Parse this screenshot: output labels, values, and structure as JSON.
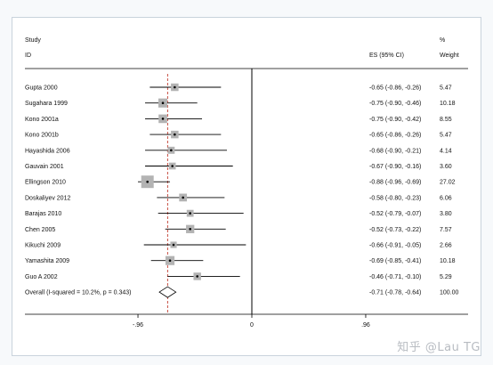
{
  "chart_data": {
    "type": "forest",
    "header": {
      "study_line1": "Study",
      "study_line2": "ID",
      "es_label": "ES (95% CI)",
      "pct_line1": "%",
      "pct_line2": "Weight"
    },
    "studies": [
      {
        "label": "Gupta 2000",
        "es": -0.65,
        "lo": -0.86,
        "hi": -0.26,
        "es_text": "-0.65 (-0.86, -0.26)",
        "weight": 5.47,
        "weight_text": "5.47"
      },
      {
        "label": "Sugahara 1999",
        "es": -0.75,
        "lo": -0.9,
        "hi": -0.46,
        "es_text": "-0.75 (-0.90, -0.46)",
        "weight": 10.18,
        "weight_text": "10.18"
      },
      {
        "label": "Kono 2001a",
        "es": -0.75,
        "lo": -0.9,
        "hi": -0.42,
        "es_text": "-0.75 (-0.90, -0.42)",
        "weight": 8.55,
        "weight_text": "8.55"
      },
      {
        "label": "Kono 2001b",
        "es": -0.65,
        "lo": -0.86,
        "hi": -0.26,
        "es_text": "-0.65 (-0.86, -0.26)",
        "weight": 5.47,
        "weight_text": "5.47"
      },
      {
        "label": "Hayashida 2006",
        "es": -0.68,
        "lo": -0.9,
        "hi": -0.21,
        "es_text": "-0.68 (-0.90, -0.21)",
        "weight": 4.14,
        "weight_text": "4.14"
      },
      {
        "label": "Gauvain 2001",
        "es": -0.67,
        "lo": -0.9,
        "hi": -0.16,
        "es_text": "-0.67 (-0.90, -0.16)",
        "weight": 3.6,
        "weight_text": "3.60"
      },
      {
        "label": "Ellingson 2010",
        "es": -0.88,
        "lo": -0.96,
        "hi": -0.69,
        "es_text": "-0.88 (-0.96, -0.69)",
        "weight": 27.02,
        "weight_text": "27.02"
      },
      {
        "label": "Doskaliyev 2012",
        "es": -0.58,
        "lo": -0.8,
        "hi": -0.23,
        "es_text": "-0.58 (-0.80, -0.23)",
        "weight": 6.06,
        "weight_text": "6.06"
      },
      {
        "label": "Barajas 2010",
        "es": -0.52,
        "lo": -0.79,
        "hi": -0.07,
        "es_text": "-0.52 (-0.79, -0.07)",
        "weight": 3.8,
        "weight_text": "3.80"
      },
      {
        "label": "Chen 2005",
        "es": -0.52,
        "lo": -0.73,
        "hi": -0.22,
        "es_text": "-0.52 (-0.73, -0.22)",
        "weight": 7.57,
        "weight_text": "7.57"
      },
      {
        "label": "Kikuchi 2009",
        "es": -0.66,
        "lo": -0.91,
        "hi": -0.05,
        "es_text": "-0.66 (-0.91, -0.05)",
        "weight": 2.66,
        "weight_text": "2.66"
      },
      {
        "label": "Yamashita 2009",
        "es": -0.69,
        "lo": -0.85,
        "hi": -0.41,
        "es_text": "-0.69 (-0.85, -0.41)",
        "weight": 10.18,
        "weight_text": "10.18"
      },
      {
        "label": "Guo A 2002",
        "es": -0.46,
        "lo": -0.71,
        "hi": -0.1,
        "es_text": "-0.46 (-0.71, -0.10)",
        "weight": 5.29,
        "weight_text": "5.29"
      }
    ],
    "overall": {
      "label": "Overall  (I-squared = 10.2%, p = 0.343)",
      "es": -0.71,
      "lo": -0.78,
      "hi": -0.64,
      "es_text": "-0.71 (-0.78, -0.64)",
      "weight_text": "100.00"
    },
    "x_axis": {
      "range": [
        -1.2,
        1.2
      ],
      "ticks": [
        -0.96,
        0,
        0.96
      ],
      "tick_labels": [
        "-.96",
        "0",
        ".96"
      ]
    },
    "null_line": 0,
    "grid": false
  },
  "watermark": "知乎 @Lau TG",
  "colors": {
    "line": "#000000",
    "box": "#b3b3b3",
    "overall_line": "#c0392b",
    "panel_border": "#c9d3dc"
  }
}
